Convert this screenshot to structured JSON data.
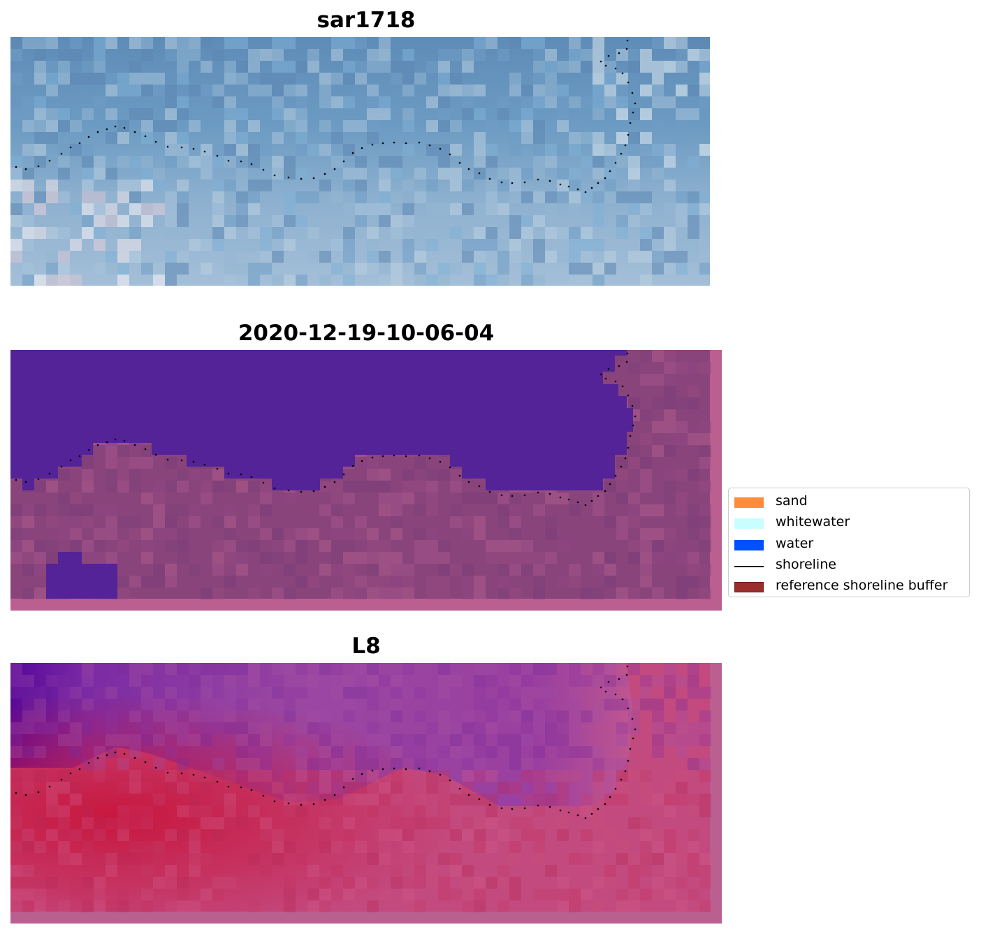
{
  "panels": [
    {
      "title": "sar1718"
    },
    {
      "title": "2020-12-19-10-06-04"
    },
    {
      "title": "L8"
    }
  ],
  "colors": {
    "sand": "#ff8c3b",
    "whitewater": "#c8fffe",
    "water": "#0050ff",
    "shoreline": "#000000",
    "reference_shoreline_buffer": "#9b2d2d",
    "classified_water_fill": "#532397"
  },
  "legend": {
    "items": [
      {
        "label": "sand",
        "kind": "patch",
        "color": "#ff8c3b"
      },
      {
        "label": "whitewater",
        "kind": "patch",
        "color": "#c8fffe"
      },
      {
        "label": "water",
        "kind": "patch",
        "color": "#0050ff"
      },
      {
        "label": "shoreline",
        "kind": "line",
        "color": "#000000"
      },
      {
        "label": "reference shoreline buffer",
        "kind": "patch",
        "color": "#9b2d2d"
      }
    ]
  }
}
